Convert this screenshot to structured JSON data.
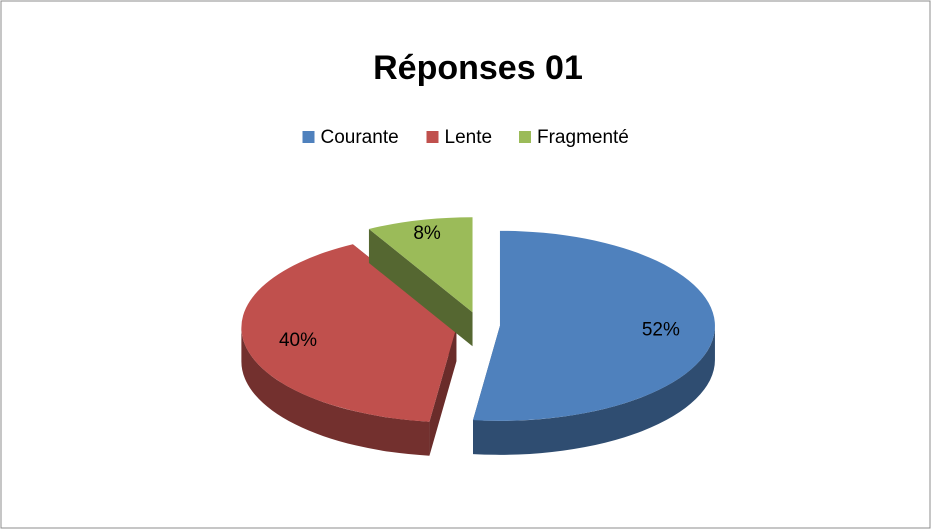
{
  "chart_data": {
    "type": "pie",
    "title": "Réponses 01",
    "categories": [
      "Courante",
      "Lente",
      "Fragmenté"
    ],
    "values": [
      52,
      40,
      8
    ],
    "value_labels": [
      "52%",
      "40%",
      "8%"
    ],
    "colors": [
      "#4f81bd",
      "#c0504d",
      "#9bbb59"
    ],
    "legend": "top"
  }
}
